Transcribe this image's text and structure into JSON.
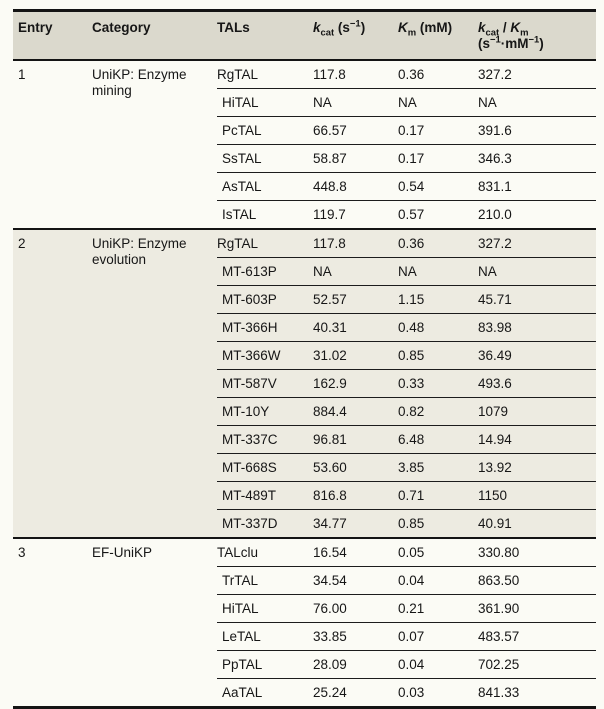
{
  "table": {
    "colors": {
      "header_bg": "#dbd9cd",
      "section_alt_bg": "#edebe1",
      "heavy_rule": "#141414",
      "light_rule": "#1c1c1c",
      "text": "#161616",
      "page_bg": "#fbfbf5"
    },
    "columns": {
      "entry": "Entry",
      "category": "Category",
      "tals": "TALs",
      "kcat_html": "<i>k</i><sub>cat</sub> (s<sup>−1</sup>)",
      "km_html": "<i>K</i><sub>m</sub> (mM)",
      "ratio_html": "<i>k</i><sub>cat</sub> / <i>K</i><sub>m</sub><br>(s<sup>−1</sup>·mM<sup>−1</sup>)"
    },
    "sections": [
      {
        "entry": "1",
        "category": "UniKP: Enzyme mining",
        "rows": [
          {
            "tal": "RgTAL",
            "kcat": "117.8",
            "km": "0.36",
            "ratio": "327.2"
          },
          {
            "tal": "HiTAL",
            "kcat": "NA",
            "km": "NA",
            "ratio": "NA"
          },
          {
            "tal": "PcTAL",
            "kcat": "66.57",
            "km": "0.17",
            "ratio": "391.6"
          },
          {
            "tal": "SsTAL",
            "kcat": "58.87",
            "km": "0.17",
            "ratio": "346.3"
          },
          {
            "tal": "AsTAL",
            "kcat": "448.8",
            "km": "0.54",
            "ratio": "831.1"
          },
          {
            "tal": "IsTAL",
            "kcat": "119.7",
            "km": "0.57",
            "ratio": "210.0"
          }
        ]
      },
      {
        "entry": "2",
        "category": "UniKP: Enzyme evolution",
        "rows": [
          {
            "tal": "RgTAL",
            "kcat": "117.8",
            "km": "0.36",
            "ratio": "327.2"
          },
          {
            "tal": "MT-613P",
            "kcat": "NA",
            "km": "NA",
            "ratio": "NA"
          },
          {
            "tal": "MT-603P",
            "kcat": "52.57",
            "km": "1.15",
            "ratio": "45.71"
          },
          {
            "tal": "MT-366H",
            "kcat": "40.31",
            "km": "0.48",
            "ratio": "83.98"
          },
          {
            "tal": "MT-366W",
            "kcat": "31.02",
            "km": "0.85",
            "ratio": "36.49"
          },
          {
            "tal": "MT-587V",
            "kcat": "162.9",
            "km": "0.33",
            "ratio": "493.6"
          },
          {
            "tal": "MT-10Y",
            "kcat": "884.4",
            "km": "0.82",
            "ratio": "1079"
          },
          {
            "tal": "MT-337C",
            "kcat": "96.81",
            "km": "6.48",
            "ratio": "14.94"
          },
          {
            "tal": "MT-668S",
            "kcat": "53.60",
            "km": "3.85",
            "ratio": "13.92"
          },
          {
            "tal": "MT-489T",
            "kcat": "816.8",
            "km": "0.71",
            "ratio": "1150"
          },
          {
            "tal": "MT-337D",
            "kcat": "34.77",
            "km": "0.85",
            "ratio": "40.91"
          }
        ]
      },
      {
        "entry": "3",
        "category": "EF-UniKP",
        "rows": [
          {
            "tal": "TALclu",
            "kcat": "16.54",
            "km": "0.05",
            "ratio": "330.80"
          },
          {
            "tal": "TrTAL",
            "kcat": "34.54",
            "km": "0.04",
            "ratio": "863.50"
          },
          {
            "tal": "HiTAL",
            "kcat": "76.00",
            "km": "0.21",
            "ratio": "361.90"
          },
          {
            "tal": "LeTAL",
            "kcat": "33.85",
            "km": "0.07",
            "ratio": "483.57"
          },
          {
            "tal": "PpTAL",
            "kcat": "28.09",
            "km": "0.04",
            "ratio": "702.25"
          },
          {
            "tal": "AaTAL",
            "kcat": "25.24",
            "km": "0.03",
            "ratio": "841.33"
          }
        ]
      }
    ]
  }
}
